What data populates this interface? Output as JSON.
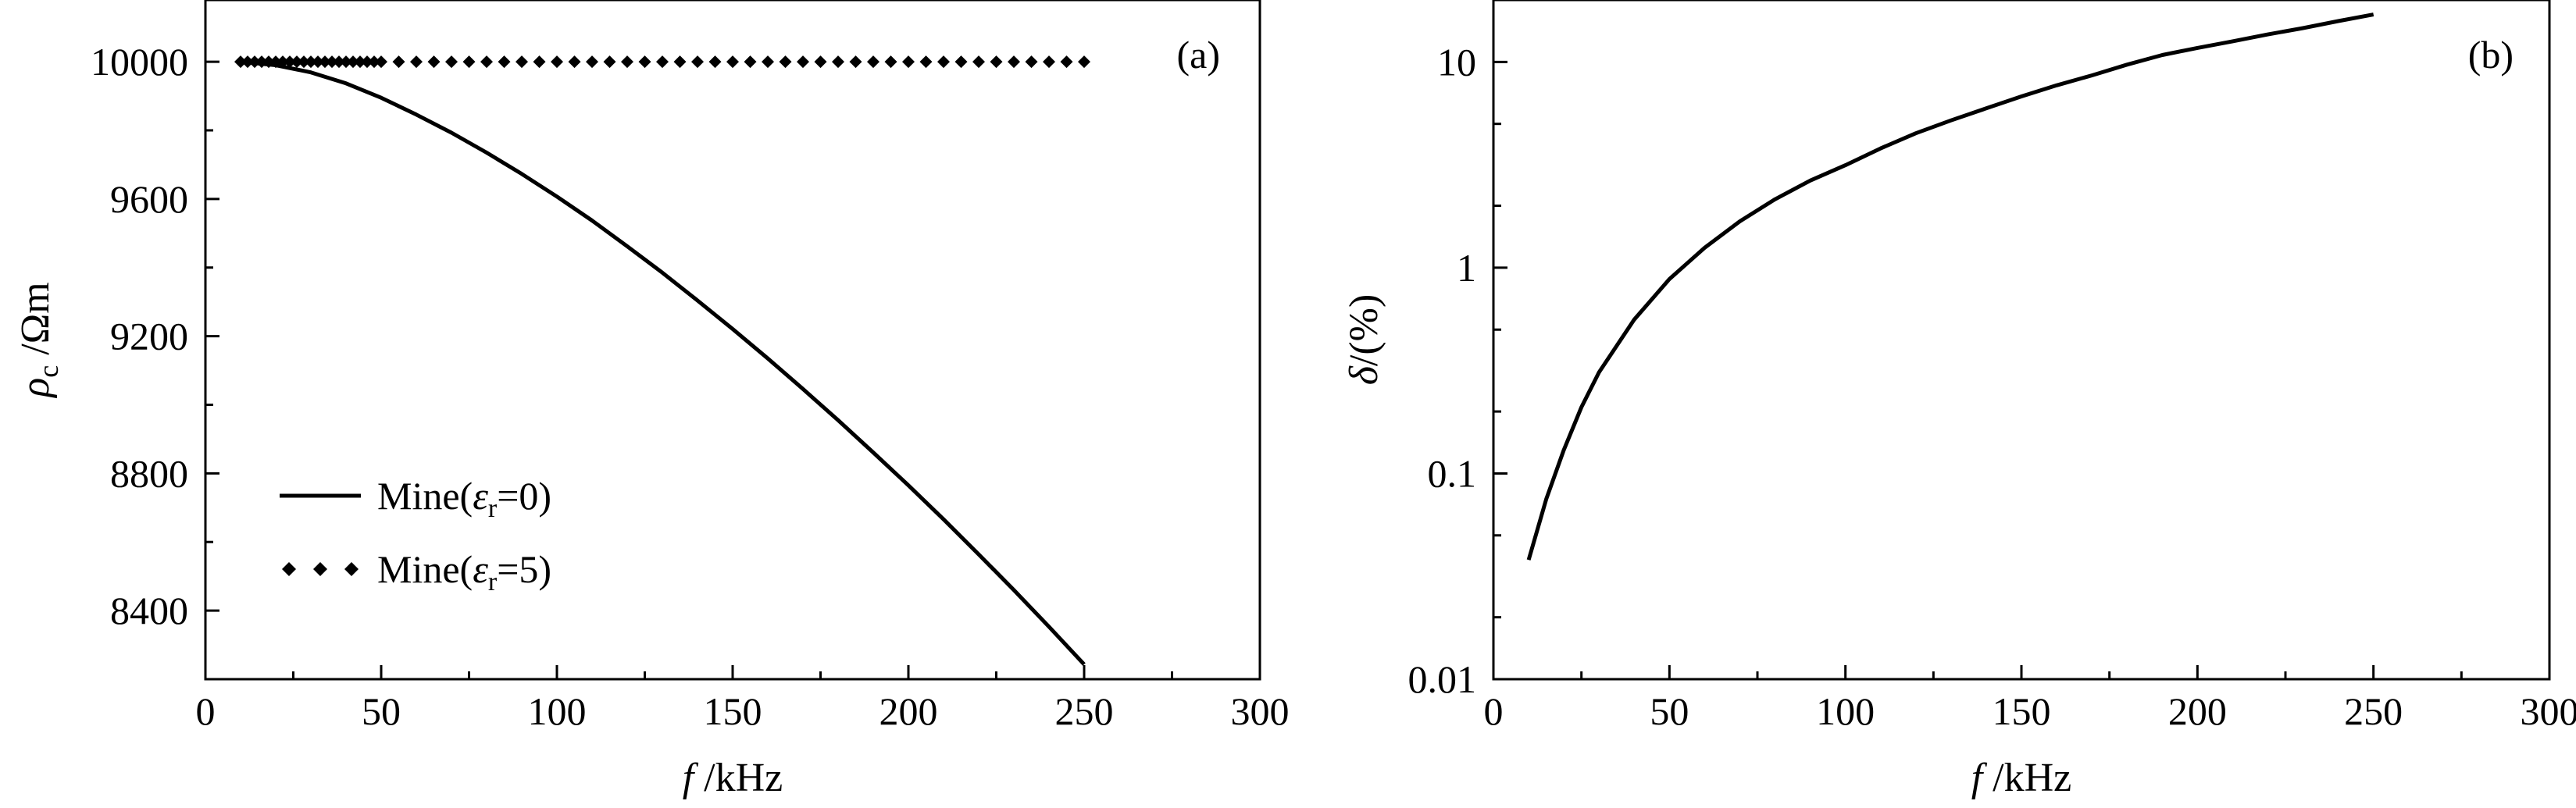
{
  "colors": {
    "line": "#000000",
    "background": "#ffffff"
  },
  "chart_data": [
    {
      "type": "line",
      "panel_label": "(a)",
      "xlabel": {
        "italic": "f",
        "rest": " /kHz"
      },
      "ylabel": {
        "symbol": "ρ",
        "sub": "c",
        "rest": " /Ωm"
      },
      "x_ticks": [
        "0",
        "50",
        "100",
        "150",
        "200",
        "250",
        "300"
      ],
      "y_ticks": [
        "8400",
        "8800",
        "9200",
        "9600",
        "10000"
      ],
      "xlim": [
        0,
        300
      ],
      "ylim": [
        8200,
        10180
      ],
      "y_scale": "linear",
      "grid": false,
      "legend_placement": "lower-left",
      "series": [
        {
          "name": "Mine(εr=0)",
          "legend": {
            "pre": "Mine(",
            "eps": "ε",
            "sub": "r",
            "post": "=0)"
          },
          "style": "solid",
          "x": [
            10,
            20,
            30,
            40,
            50,
            60,
            70,
            80,
            90,
            100,
            110,
            120,
            130,
            140,
            150,
            160,
            170,
            180,
            190,
            200,
            210,
            220,
            230,
            240,
            250
          ],
          "y": [
            10000,
            9990,
            9969,
            9937,
            9895,
            9846,
            9793,
            9735,
            9673,
            9607,
            9537,
            9462,
            9385,
            9304,
            9221,
            9135,
            9046,
            8955,
            8861,
            8765,
            8666,
            8564,
            8460,
            8353,
            8243
          ]
        },
        {
          "name": "Mine(εr=5)",
          "legend": {
            "pre": "Mine(",
            "eps": "ε",
            "sub": "r",
            "post": "=5)"
          },
          "style": "diamond-markers",
          "x": [
            10,
            12,
            14,
            16,
            18,
            20,
            22,
            24,
            26,
            28,
            30,
            32,
            34,
            36,
            38,
            40,
            42,
            44,
            46,
            48,
            50,
            55,
            60,
            65,
            70,
            75,
            80,
            85,
            90,
            95,
            100,
            105,
            110,
            115,
            120,
            125,
            130,
            135,
            140,
            145,
            150,
            155,
            160,
            165,
            170,
            175,
            180,
            185,
            190,
            195,
            200,
            205,
            210,
            215,
            220,
            225,
            230,
            235,
            240,
            245,
            250
          ],
          "y": [
            10000,
            10000,
            10000,
            10000,
            10000,
            10000,
            10000,
            10000,
            10000,
            10000,
            10000,
            10000,
            10000,
            10000,
            10000,
            10000,
            10000,
            10000,
            10000,
            10000,
            10000,
            10000,
            10000,
            10000,
            10000,
            10000,
            10000,
            10000,
            10000,
            10000,
            10000,
            10000,
            10000,
            10000,
            10000,
            10000,
            10000,
            10000,
            10000,
            10000,
            10000,
            10000,
            10000,
            10000,
            10000,
            10000,
            10000,
            10000,
            10000,
            10000,
            10000,
            10000,
            10000,
            10000,
            10000,
            10000,
            10000,
            10000,
            10000,
            10000,
            10000
          ]
        }
      ]
    },
    {
      "type": "line",
      "panel_label": "(b)",
      "xlabel": {
        "italic": "f",
        "rest": " /kHz"
      },
      "ylabel": {
        "symbol": "δ",
        "rest": "/(%)"
      },
      "x_ticks": [
        "0",
        "50",
        "100",
        "150",
        "200",
        "250",
        "300"
      ],
      "y_ticks": [
        "0.01",
        "0.1",
        "1",
        "10"
      ],
      "y_tick_values": [
        0.01,
        0.1,
        1,
        10
      ],
      "xlim": [
        0,
        300
      ],
      "ylim": [
        0.01,
        20
      ],
      "y_scale": "log",
      "grid": false,
      "series": [
        {
          "style": "solid",
          "x": [
            10,
            15,
            20,
            25,
            30,
            40,
            50,
            60,
            70,
            80,
            90,
            100,
            110,
            120,
            130,
            140,
            150,
            160,
            170,
            180,
            190,
            200,
            210,
            220,
            230,
            240,
            250
          ],
          "y": [
            0.038,
            0.075,
            0.13,
            0.21,
            0.31,
            0.56,
            0.88,
            1.25,
            1.68,
            2.15,
            2.65,
            3.15,
            3.8,
            4.5,
            5.2,
            5.95,
            6.8,
            7.7,
            8.6,
            9.7,
            10.8,
            11.7,
            12.6,
            13.6,
            14.6,
            15.8,
            17.0
          ]
        }
      ]
    }
  ]
}
